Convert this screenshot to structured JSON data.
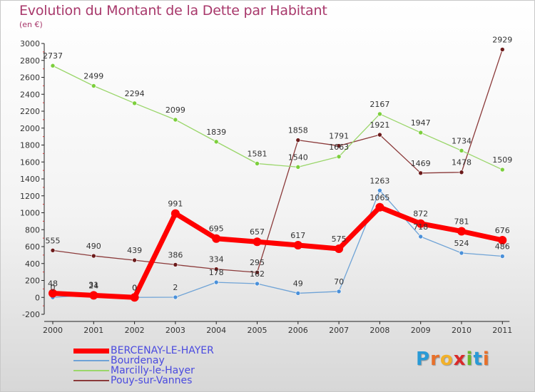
{
  "chart_data": {
    "type": "line",
    "title": "Evolution du Montant de la Dette par Habitant",
    "subtitle": "(en €)",
    "categories": [
      "2000",
      "2001",
      "2002",
      "2003",
      "2004",
      "2005",
      "2006",
      "2007",
      "2008",
      "2009",
      "2010",
      "2011"
    ],
    "y_ticks": [
      "-200",
      "0",
      "200",
      "400",
      "600",
      "800",
      "1000",
      "1200",
      "1400",
      "1600",
      "1800",
      "2000",
      "2200",
      "2400",
      "2600",
      "2800",
      "3000"
    ],
    "ylim": [
      -200,
      3000
    ],
    "grid": false,
    "legend_position": "bottom-left",
    "series": [
      {
        "name": "BERCENAY-LE-HAYER",
        "color": "#ff0000",
        "marker_color": "#ff0000",
        "values": [
          48,
          24,
          0,
          991,
          695,
          657,
          617,
          575,
          1065,
          872,
          781,
          676
        ]
      },
      {
        "name": "Bourdenay",
        "color": "#6fa3d6",
        "marker_color": "#4a90d9",
        "values": [
          0,
          31,
          0,
          2,
          178,
          162,
          49,
          70,
          1263,
          718,
          524,
          486
        ]
      },
      {
        "name": "Marcilly-le-Hayer",
        "color": "#9ad66a",
        "marker_color": "#7ccf3c",
        "values": [
          2737,
          2499,
          2294,
          2099,
          1839,
          1581,
          1540,
          1663,
          2167,
          1947,
          1734,
          1509
        ]
      },
      {
        "name": "Pouy-sur-Vannes",
        "color": "#8b3a3a",
        "marker_color": "#6b1a1a",
        "values": [
          555,
          490,
          439,
          386,
          334,
          295,
          1858,
          1791,
          1921,
          1469,
          1478,
          2929
        ]
      }
    ],
    "labels": [
      {
        "series": 0,
        "texts": [
          "48",
          "24",
          "0",
          "991",
          "695",
          "657",
          "617",
          "575",
          "1065",
          "872",
          "781",
          "676"
        ]
      },
      {
        "series": 1,
        "texts": [
          "0",
          "31",
          "0",
          "2",
          "178",
          "162",
          "49",
          "70",
          "1263",
          "718",
          "524",
          "486"
        ]
      },
      {
        "series": 2,
        "texts": [
          "2737",
          "2499",
          "2294",
          "2099",
          "1839",
          "1581",
          "1540",
          "1663",
          "2167",
          "1947",
          "1734",
          "1509"
        ]
      },
      {
        "series": 3,
        "texts": [
          "555",
          "490",
          "439",
          "386",
          "334",
          "295",
          "1858",
          "1791",
          "1921",
          "1469",
          "1478",
          "2929"
        ]
      }
    ]
  },
  "legend": {
    "items": [
      {
        "label": "BERCENAY-LE-HAYER",
        "color": "#ff0000",
        "text_color": "#4a4adf"
      },
      {
        "label": "Bourdenay",
        "color": "#6fa3d6",
        "text_color": "#4a4adf"
      },
      {
        "label": "Marcilly-le-Hayer",
        "color": "#9ad66a",
        "text_color": "#4a4adf"
      },
      {
        "label": "Pouy-sur-Vannes",
        "color": "#8b3a3a",
        "text_color": "#4a4adf"
      }
    ]
  },
  "logo": {
    "letters": [
      "P",
      "r",
      "o",
      "x",
      "i",
      "t",
      "i"
    ],
    "colors": [
      "#2a9ad6",
      "#e8702a",
      "#f2b12a",
      "#d92a2a",
      "#6ab82a",
      "#2a9ad6",
      "#e8702a"
    ]
  }
}
